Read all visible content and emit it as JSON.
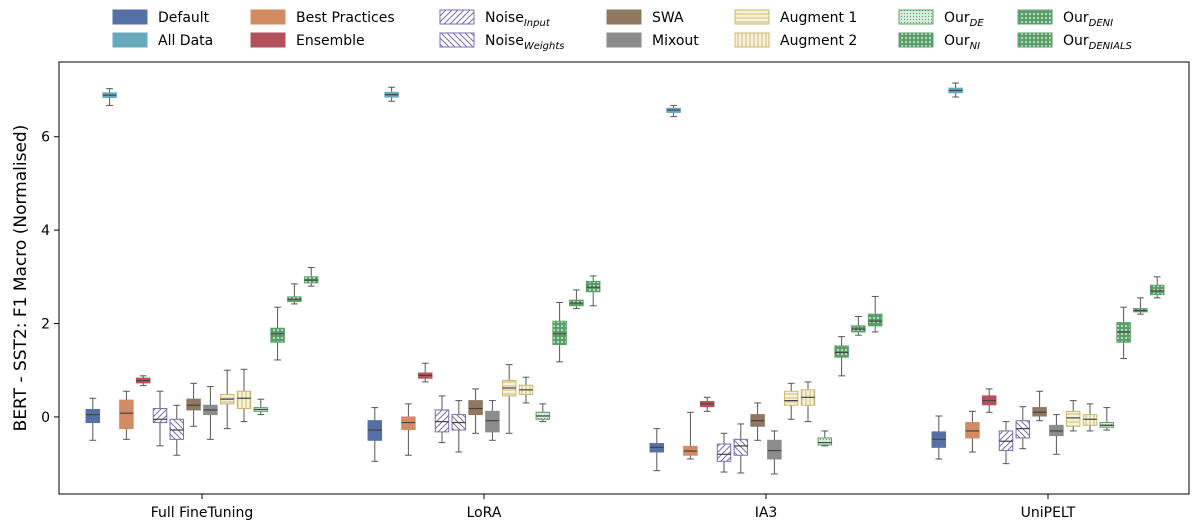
{
  "chart_data": {
    "type": "box",
    "ylabel": "BERT - SST2: F1 Macro (Normalised)",
    "ylim": [
      -1.65,
      7.6
    ],
    "yticks": [
      0,
      2,
      4,
      6
    ],
    "groups": [
      "Full FineTuning",
      "LoRA",
      "IA3",
      "UniPELT"
    ],
    "legend_position": "top",
    "series": [
      {
        "name": "Default",
        "sub": "",
        "color": "#5470a6",
        "pattern": "solid",
        "boxes": [
          [
            -0.5,
            -0.12,
            0.05,
            0.16,
            0.4
          ],
          [
            -0.95,
            -0.5,
            -0.28,
            -0.08,
            0.2
          ],
          [
            -1.15,
            -0.75,
            -0.65,
            -0.57,
            -0.25
          ],
          [
            -0.9,
            -0.65,
            -0.48,
            -0.32,
            0.02
          ]
        ]
      },
      {
        "name": "All Data",
        "sub": "",
        "color": "#66aabc",
        "pattern": "solid",
        "boxes": [
          [
            6.67,
            6.84,
            6.89,
            6.94,
            7.03
          ],
          [
            6.76,
            6.85,
            6.9,
            6.95,
            7.06
          ],
          [
            6.43,
            6.52,
            6.57,
            6.61,
            6.67
          ],
          [
            6.85,
            6.94,
            6.99,
            7.04,
            7.15
          ]
        ]
      },
      {
        "name": "Best Practices",
        "sub": "",
        "color": "#d38b62",
        "pattern": "solid",
        "boxes": [
          [
            -0.48,
            -0.25,
            0.08,
            0.36,
            0.55
          ],
          [
            -0.82,
            -0.27,
            -0.12,
            0.0,
            0.28
          ],
          [
            -0.9,
            -0.82,
            -0.73,
            -0.63,
            0.1
          ],
          [
            -0.75,
            -0.45,
            -0.3,
            -0.12,
            0.12
          ]
        ]
      },
      {
        "name": "Ensemble",
        "sub": "",
        "color": "#b3525c",
        "pattern": "solid",
        "boxes": [
          [
            0.67,
            0.73,
            0.78,
            0.83,
            0.88
          ],
          [
            0.75,
            0.83,
            0.89,
            0.94,
            1.15
          ],
          [
            0.12,
            0.22,
            0.28,
            0.33,
            0.42
          ],
          [
            0.1,
            0.26,
            0.35,
            0.45,
            0.6
          ]
        ]
      },
      {
        "name": "Noise",
        "sub": "Input",
        "color": "#7b6cac",
        "pattern": "diag-left",
        "boxes": [
          [
            -0.62,
            -0.12,
            -0.05,
            0.18,
            0.55
          ],
          [
            -0.55,
            -0.32,
            -0.1,
            0.15,
            0.45
          ],
          [
            -1.18,
            -0.95,
            -0.8,
            -0.58,
            -0.35
          ],
          [
            -1.0,
            -0.72,
            -0.52,
            -0.3,
            -0.1
          ]
        ]
      },
      {
        "name": "Noise",
        "sub": "Weights",
        "color": "#7b6cac",
        "pattern": "diag-right",
        "boxes": [
          [
            -0.82,
            -0.48,
            -0.28,
            -0.05,
            0.25
          ],
          [
            -0.75,
            -0.28,
            -0.12,
            0.05,
            0.35
          ],
          [
            -1.2,
            -0.82,
            -0.62,
            -0.48,
            -0.15
          ],
          [
            -0.68,
            -0.45,
            -0.25,
            -0.08,
            0.22
          ]
        ]
      },
      {
        "name": "SWA",
        "sub": "",
        "color": "#8f7762",
        "pattern": "solid",
        "boxes": [
          [
            -0.2,
            0.15,
            0.25,
            0.38,
            0.72
          ],
          [
            -0.35,
            0.05,
            0.18,
            0.35,
            0.6
          ],
          [
            -0.5,
            -0.2,
            -0.08,
            0.05,
            0.3
          ],
          [
            -0.08,
            0.02,
            0.1,
            0.2,
            0.55
          ]
        ]
      },
      {
        "name": "Mixout",
        "sub": "",
        "color": "#8c8c8c",
        "pattern": "solid",
        "boxes": [
          [
            -0.48,
            0.05,
            0.15,
            0.25,
            0.65
          ],
          [
            -0.5,
            -0.32,
            -0.08,
            0.12,
            0.35
          ],
          [
            -1.22,
            -0.9,
            -0.72,
            -0.5,
            -0.3
          ],
          [
            -0.8,
            -0.4,
            -0.3,
            -0.18,
            0.05
          ]
        ]
      },
      {
        "name": "Augment 1",
        "sub": "",
        "color": "#c9b771",
        "pattern": "horiz",
        "boxes": [
          [
            -0.25,
            0.28,
            0.38,
            0.48,
            1.0
          ],
          [
            -0.35,
            0.45,
            0.62,
            0.78,
            1.12
          ],
          [
            -0.05,
            0.25,
            0.35,
            0.55,
            0.72
          ],
          [
            -0.3,
            -0.2,
            -0.02,
            0.12,
            0.35
          ]
        ]
      },
      {
        "name": "Augment 2",
        "sub": "",
        "color": "#c9b771",
        "pattern": "vert",
        "boxes": [
          [
            -0.1,
            0.18,
            0.4,
            0.55,
            1.02
          ],
          [
            0.3,
            0.48,
            0.58,
            0.68,
            0.85
          ],
          [
            -0.1,
            0.25,
            0.42,
            0.58,
            0.75
          ],
          [
            -0.3,
            -0.18,
            -0.05,
            0.05,
            0.28
          ]
        ]
      },
      {
        "name": "Our",
        "sub": "DE",
        "color": "#5a9e68",
        "pattern": "dots-fine",
        "boxes": [
          [
            0.05,
            0.12,
            0.16,
            0.2,
            0.38
          ],
          [
            -0.1,
            -0.05,
            0.02,
            0.1,
            0.28
          ],
          [
            -0.62,
            -0.6,
            -0.55,
            -0.45,
            -0.3
          ],
          [
            -0.28,
            -0.22,
            -0.18,
            -0.12,
            0.2
          ]
        ]
      },
      {
        "name": "Our",
        "sub": "NI",
        "color": "#5a9e68",
        "pattern": "dots",
        "boxes": [
          [
            1.22,
            1.6,
            1.78,
            1.9,
            2.35
          ],
          [
            1.18,
            1.55,
            1.78,
            2.05,
            2.45
          ],
          [
            0.88,
            1.28,
            1.38,
            1.52,
            1.72
          ],
          [
            1.25,
            1.6,
            1.82,
            2.02,
            2.35
          ]
        ]
      },
      {
        "name": "Our",
        "sub": "DENI",
        "color": "#5a9e68",
        "pattern": "dots",
        "boxes": [
          [
            2.42,
            2.47,
            2.52,
            2.57,
            2.85
          ],
          [
            2.32,
            2.38,
            2.44,
            2.5,
            2.72
          ],
          [
            1.75,
            1.82,
            1.88,
            1.95,
            2.15
          ],
          [
            2.2,
            2.25,
            2.28,
            2.32,
            2.55
          ]
        ]
      },
      {
        "name": "Our",
        "sub": "DENIALS",
        "color": "#5a9e68",
        "pattern": "dots",
        "boxes": [
          [
            2.8,
            2.87,
            2.93,
            3.0,
            3.2
          ],
          [
            2.38,
            2.68,
            2.78,
            2.9,
            3.02
          ],
          [
            1.82,
            1.95,
            2.05,
            2.2,
            2.58
          ],
          [
            2.55,
            2.62,
            2.7,
            2.82,
            3.0
          ]
        ]
      }
    ]
  }
}
